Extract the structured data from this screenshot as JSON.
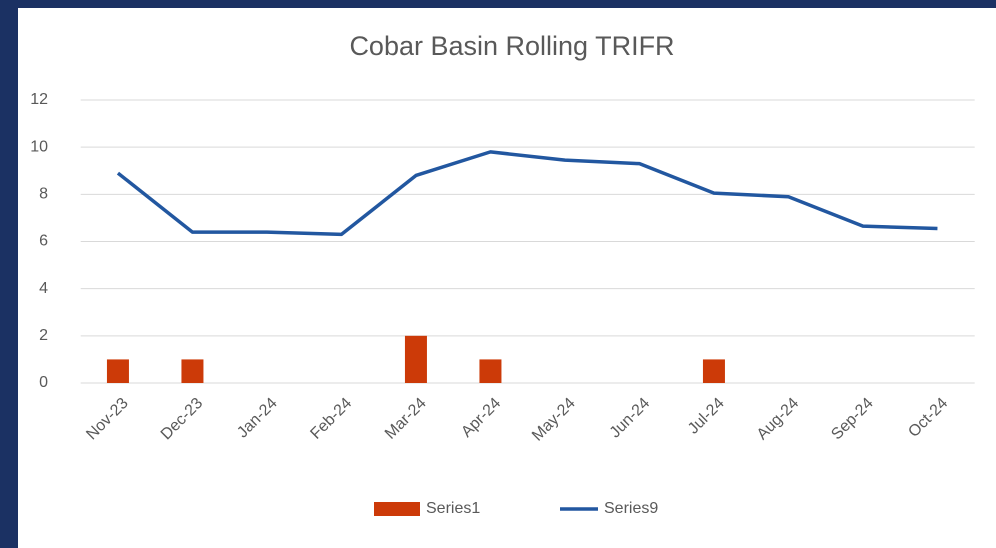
{
  "chart_data": {
    "type": "bar",
    "title": "Cobar Basin Rolling TRIFR",
    "categories": [
      "Nov-23",
      "Dec-23",
      "Jan-24",
      "Feb-24",
      "Mar-24",
      "Apr-24",
      "May-24",
      "Jun-24",
      "Jul-24",
      "Aug-24",
      "Sep-24",
      "Oct-24"
    ],
    "series": [
      {
        "name": "Series1",
        "type": "bar",
        "color": "#cc3a08",
        "values": [
          1,
          1,
          0,
          0,
          2,
          1,
          0,
          0,
          1,
          0,
          0,
          0
        ]
      },
      {
        "name": "Series9",
        "type": "line",
        "color": "#2257a0",
        "values": [
          8.9,
          6.4,
          6.4,
          6.3,
          8.8,
          9.8,
          9.45,
          9.3,
          8.05,
          7.9,
          6.65,
          6.55
        ]
      }
    ],
    "ylim": [
      0,
      12
    ],
    "yticks": [
      0,
      2,
      4,
      6,
      8,
      10,
      12
    ],
    "grid": true,
    "legend": "bottom"
  }
}
